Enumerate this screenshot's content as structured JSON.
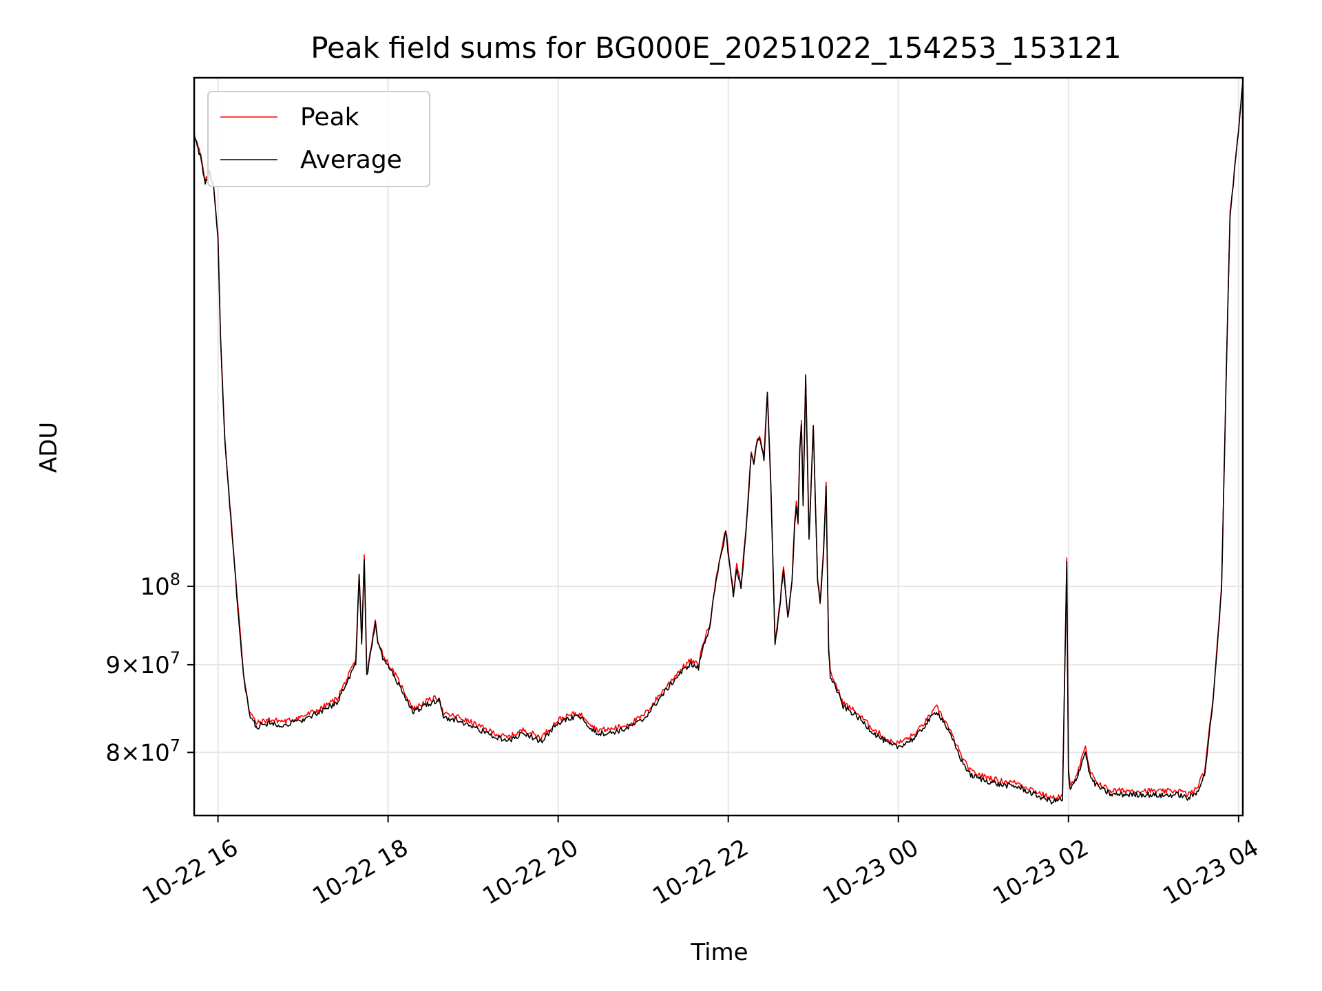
{
  "chart_data": {
    "type": "line",
    "title": "Peak field sums for BG000E_20251022_154253_153121",
    "xlabel": "Time",
    "ylabel": "ADU",
    "yscale": "log",
    "xlim": [
      15.72,
      28.05
    ],
    "ylim": [
      73500000,
      198000000
    ],
    "grid": true,
    "legend_position": "upper-left",
    "x_ticks": [
      {
        "value": 16,
        "label": "10-22 16"
      },
      {
        "value": 18,
        "label": "10-22 18"
      },
      {
        "value": 20,
        "label": "10-22 20"
      },
      {
        "value": 22,
        "label": "10-22 22"
      },
      {
        "value": 24,
        "label": "10-23 00"
      },
      {
        "value": 26,
        "label": "10-23 02"
      },
      {
        "value": 28,
        "label": "10-23 04"
      }
    ],
    "y_ticks": [
      {
        "value": 80000000,
        "base": "8",
        "mult": "×",
        "exp_base": "10",
        "exp": "7"
      },
      {
        "value": 90000000,
        "base": "9",
        "mult": "×",
        "exp_base": "10",
        "exp": "7"
      },
      {
        "value": 100000000,
        "base": "",
        "mult": "",
        "exp_base": "10",
        "exp": "8"
      }
    ],
    "series": [
      {
        "name": "Peak",
        "color": "#ff0000",
        "x": [
          15.72,
          15.8,
          15.85,
          15.9,
          15.95,
          16.0,
          16.03,
          16.08,
          16.15,
          16.22,
          16.3,
          16.37,
          16.45,
          16.6,
          16.8,
          17.0,
          17.2,
          17.4,
          17.55,
          17.62,
          17.66,
          17.69,
          17.72,
          17.75,
          17.8,
          17.85,
          17.88,
          17.95,
          18.1,
          18.3,
          18.45,
          18.6,
          18.65,
          18.8,
          19.0,
          19.2,
          19.4,
          19.6,
          19.8,
          20.0,
          20.2,
          20.3,
          20.45,
          20.6,
          20.8,
          21.0,
          21.2,
          21.4,
          21.55,
          21.65,
          21.7,
          21.78,
          21.83,
          21.88,
          21.92,
          21.97,
          22.02,
          22.06,
          22.1,
          22.15,
          22.22,
          22.27,
          22.3,
          22.34,
          22.38,
          22.42,
          22.46,
          22.5,
          22.55,
          22.6,
          22.65,
          22.7,
          22.75,
          22.78,
          22.8,
          22.82,
          22.84,
          22.86,
          22.88,
          22.91,
          22.95,
          23.0,
          23.05,
          23.08,
          23.12,
          23.15,
          23.18,
          23.2,
          23.25,
          23.35,
          23.5,
          23.7,
          23.9,
          24.0,
          24.2,
          24.3,
          24.45,
          24.55,
          24.65,
          24.75,
          24.85,
          25.0,
          25.2,
          25.4,
          25.6,
          25.8,
          25.93,
          25.98,
          26.0,
          26.02,
          26.1,
          26.2,
          26.25,
          26.3,
          26.4,
          26.5,
          26.7,
          26.9,
          27.1,
          27.3,
          27.4,
          27.5,
          27.6,
          27.7,
          27.8,
          27.85,
          27.9,
          28.0,
          28.05
        ],
        "values": [
          184000000,
          178000000,
          172000000,
          175000000,
          171000000,
          160000000,
          140000000,
          122000000,
          110000000,
          99500000,
          89000000,
          84600000,
          83200000,
          83600000,
          83400000,
          84000000,
          84800000,
          86000000,
          89000000,
          90500000,
          101800000,
          93000000,
          104300000,
          89000000,
          92000000,
          95500000,
          93000000,
          91000000,
          88500000,
          84800000,
          85700000,
          86200000,
          84200000,
          84000000,
          83200000,
          82300000,
          81600000,
          82500000,
          81600000,
          83600000,
          84300000,
          84000000,
          82500000,
          82500000,
          83000000,
          84000000,
          86500000,
          89000000,
          90500000,
          90000000,
          92500000,
          95000000,
          99000000,
          102500000,
          105000000,
          108000000,
          103000000,
          99000000,
          103000000,
          100000000,
          110000000,
          120000000,
          118000000,
          122000000,
          122000000,
          119000000,
          130000000,
          115000000,
          93000000,
          97000000,
          103000000,
          96000000,
          101000000,
          109000000,
          112000000,
          109000000,
          120000000,
          125000000,
          112000000,
          133000000,
          107000000,
          124000000,
          101000000,
          98000000,
          105000000,
          115000000,
          92000000,
          89000000,
          88000000,
          85500000,
          84500000,
          82600000,
          81200000,
          81000000,
          82000000,
          83200000,
          85000000,
          83500000,
          81500000,
          79400000,
          78000000,
          77500000,
          77000000,
          76800000,
          76000000,
          75200000,
          75500000,
          103800000,
          78000000,
          76400000,
          77800000,
          80500000,
          78000000,
          77200000,
          76500000,
          76000000,
          76000000,
          76000000,
          75900000,
          76000000,
          75600000,
          76100000,
          78000000,
          86000000,
          100000000,
          130000000,
          165000000,
          185000000,
          197000000
        ]
      },
      {
        "name": "Average",
        "color": "#000000",
        "x": [
          15.72,
          15.8,
          15.85,
          15.9,
          15.95,
          16.0,
          16.03,
          16.08,
          16.15,
          16.22,
          16.3,
          16.37,
          16.45,
          16.6,
          16.8,
          17.0,
          17.2,
          17.4,
          17.55,
          17.62,
          17.66,
          17.69,
          17.72,
          17.75,
          17.8,
          17.85,
          17.88,
          17.95,
          18.1,
          18.3,
          18.45,
          18.6,
          18.65,
          18.8,
          19.0,
          19.2,
          19.4,
          19.6,
          19.8,
          20.0,
          20.2,
          20.3,
          20.45,
          20.6,
          20.8,
          21.0,
          21.2,
          21.4,
          21.55,
          21.65,
          21.7,
          21.78,
          21.83,
          21.88,
          21.92,
          21.97,
          22.02,
          22.06,
          22.1,
          22.15,
          22.22,
          22.27,
          22.3,
          22.34,
          22.38,
          22.42,
          22.46,
          22.5,
          22.55,
          22.6,
          22.65,
          22.7,
          22.75,
          22.78,
          22.8,
          22.82,
          22.84,
          22.86,
          22.88,
          22.91,
          22.95,
          23.0,
          23.05,
          23.08,
          23.12,
          23.15,
          23.18,
          23.2,
          23.25,
          23.35,
          23.5,
          23.7,
          23.9,
          24.0,
          24.2,
          24.3,
          24.45,
          24.55,
          24.65,
          24.75,
          24.85,
          25.0,
          25.2,
          25.4,
          25.6,
          25.8,
          25.93,
          25.98,
          26.0,
          26.02,
          26.1,
          26.2,
          26.25,
          26.3,
          26.4,
          26.5,
          26.7,
          26.9,
          27.1,
          27.3,
          27.4,
          27.5,
          27.6,
          27.7,
          27.8,
          27.85,
          27.9,
          28.0,
          28.05
        ],
        "values": [
          183500000,
          177500000,
          171500000,
          174500000,
          170500000,
          159500000,
          139500000,
          121500000,
          109500000,
          99000000,
          88600000,
          84200000,
          82800000,
          83200000,
          83000000,
          83600000,
          84400000,
          85600000,
          88600000,
          90100000,
          101400000,
          92600000,
          103900000,
          88600000,
          91600000,
          95100000,
          92600000,
          90600000,
          88100000,
          84400000,
          85300000,
          85800000,
          83800000,
          83600000,
          82800000,
          81900000,
          81200000,
          82100000,
          81200000,
          83200000,
          83900000,
          83600000,
          82100000,
          82100000,
          82600000,
          83600000,
          86100000,
          88600000,
          90100000,
          89600000,
          92100000,
          94600000,
          98600000,
          102100000,
          104600000,
          107600000,
          102600000,
          98600000,
          102600000,
          99600000,
          109600000,
          119600000,
          117600000,
          121600000,
          121600000,
          118600000,
          129600000,
          114600000,
          92600000,
          96600000,
          102600000,
          95600000,
          100600000,
          108600000,
          111600000,
          108600000,
          119600000,
          124600000,
          111600000,
          132600000,
          106600000,
          123600000,
          100600000,
          97600000,
          104600000,
          114600000,
          91600000,
          88600000,
          87600000,
          85100000,
          84100000,
          82200000,
          80800000,
          80600000,
          81600000,
          82800000,
          84600000,
          83100000,
          81100000,
          79000000,
          77600000,
          77100000,
          76600000,
          76400000,
          75600000,
          74900000,
          75100000,
          103400000,
          77600000,
          76000000,
          77400000,
          80100000,
          77600000,
          76800000,
          76100000,
          75600000,
          75600000,
          75600000,
          75500000,
          75600000,
          75200000,
          75700000,
          77600000,
          85600000,
          99600000,
          129600000,
          164600000,
          184600000,
          196600000
        ]
      }
    ]
  }
}
